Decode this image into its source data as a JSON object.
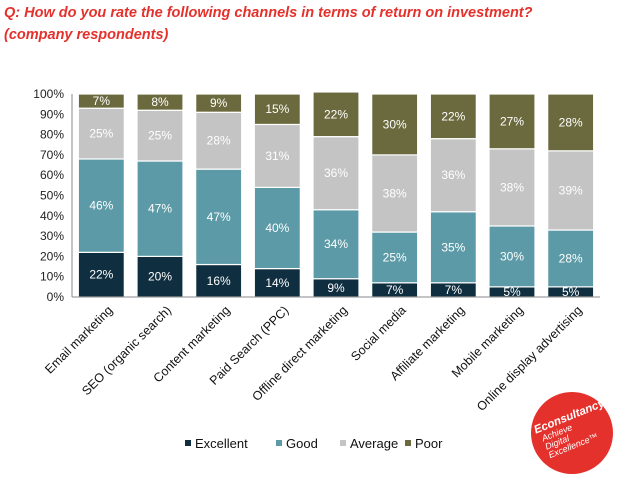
{
  "question": "Q: How do you rate the following channels in terms of return on investment? (company respondents)",
  "logo": {
    "brand": "Econsultancy",
    "tagline": [
      "Achieve",
      "Digital",
      "Excellence™"
    ]
  },
  "chart_data": {
    "type": "bar",
    "stacked": true,
    "percent_stacked": true,
    "title": "",
    "xlabel": "",
    "ylabel": "",
    "ylim": [
      0,
      100
    ],
    "yticks": [
      "0%",
      "10%",
      "20%",
      "30%",
      "40%",
      "50%",
      "60%",
      "70%",
      "80%",
      "90%",
      "100%"
    ],
    "categories": [
      "Email marketing",
      "SEO (organic search)",
      "Content marketing",
      "Paid Search (PPC)",
      "Offline direct marketing",
      "Social media",
      "Affiliate marketing",
      "Mobile marketing",
      "Online display advertising"
    ],
    "series": [
      {
        "name": "Excellent",
        "color": "#0f2e40",
        "labelColor": "#ffffff",
        "values": [
          22,
          20,
          16,
          14,
          9,
          7,
          7,
          5,
          5
        ],
        "labels": [
          "22%",
          "20%",
          "16%",
          "14%",
          "9%",
          "7%",
          "7%",
          "5%",
          "5%"
        ]
      },
      {
        "name": "Good",
        "color": "#5b9aa6",
        "labelColor": "#ffffff",
        "values": [
          46,
          47,
          47,
          40,
          34,
          25,
          35,
          30,
          28
        ],
        "labels": [
          "46%",
          "47%",
          "47%",
          "40%",
          "34%",
          "25%",
          "35%",
          "30%",
          "28%"
        ]
      },
      {
        "name": "Average",
        "color": "#c4c4c4",
        "labelColor": "#ffffff",
        "values": [
          25,
          25,
          28,
          31,
          36,
          38,
          36,
          38,
          39
        ],
        "labels": [
          "25%",
          "25%",
          "28%",
          "31%",
          "36%",
          "38%",
          "36%",
          "38%",
          "39%"
        ]
      },
      {
        "name": "Poor",
        "color": "#6b6a3e",
        "labelColor": "#ffffff",
        "values": [
          7,
          8,
          9,
          15,
          22,
          30,
          22,
          27,
          28
        ],
        "labels": [
          "7%",
          "8%",
          "9%",
          "15%",
          "22%",
          "30%",
          "22%",
          "27%",
          "28%"
        ]
      }
    ],
    "legend": {
      "position": "bottom"
    },
    "grid": false
  }
}
